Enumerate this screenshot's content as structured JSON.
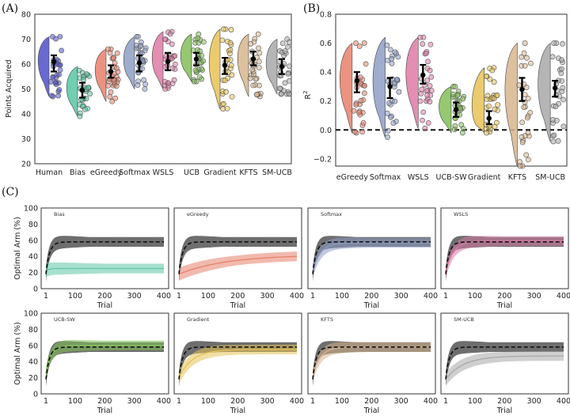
{
  "panel_labels": {
    "A": "(A)",
    "B": "(B)",
    "C": "(C)"
  },
  "chart_data": [
    {
      "type": "violin",
      "panel": "(A)",
      "xlabel": "",
      "ylabel": "Points Acquired",
      "ylim": [
        20,
        80
      ],
      "yticks": [
        20,
        30,
        40,
        50,
        60,
        70,
        80
      ],
      "grid": false,
      "categories": [
        "Human",
        "Bias",
        "eGreedy",
        "Softmax",
        "WSLS",
        "UCB",
        "Gradient",
        "KFTS",
        "SM-UCB"
      ],
      "colors": [
        "#4f50c8",
        "#57c7a3",
        "#e8806a",
        "#8d9dc4",
        "#de7aa5",
        "#83be58",
        "#e6c255",
        "#d7b58d",
        "#a8a8a8"
      ],
      "mean": [
        61,
        49.5,
        57,
        60.5,
        61,
        62,
        59.5,
        62,
        59
      ],
      "ci": [
        [
          57,
          63.5
        ],
        [
          46.5,
          52.5
        ],
        [
          54.5,
          59.5
        ],
        [
          57,
          63.5
        ],
        [
          57.5,
          64.5
        ],
        [
          59.5,
          64.5
        ],
        [
          56,
          62.5
        ],
        [
          59.5,
          65
        ],
        [
          56,
          62
        ]
      ],
      "min": [
        47,
        39,
        45,
        50,
        50,
        53,
        42,
        47,
        48
      ],
      "max": [
        71,
        59,
        66,
        71,
        73,
        72,
        74,
        72,
        70
      ]
    },
    {
      "type": "violin",
      "panel": "(B)",
      "xlabel": "",
      "ylabel": "R",
      "ylabel_sup": "2",
      "ylim": [
        -0.25,
        0.8
      ],
      "yticks": [
        -0.2,
        0.0,
        0.2,
        0.4,
        0.6,
        0.8
      ],
      "ytick_labels": [
        "−0.2",
        "0.0",
        "0.2",
        "0.4",
        "0.6",
        "0.8"
      ],
      "reference_line": 0.0,
      "grid": false,
      "categories": [
        "eGreedy",
        "Softmax",
        "WSLS",
        "UCB-SW",
        "Gradient",
        "KFTS",
        "SM-UCB"
      ],
      "colors": [
        "#e8806a",
        "#8d9dc4",
        "#de7aa5",
        "#83be58",
        "#e6c255",
        "#d7b58d",
        "#a8a8a8"
      ],
      "mean": [
        0.34,
        0.3,
        0.38,
        0.14,
        0.08,
        0.28,
        0.29
      ],
      "ci": [
        [
          0.26,
          0.4
        ],
        [
          0.22,
          0.36
        ],
        [
          0.32,
          0.45
        ],
        [
          0.09,
          0.19
        ],
        [
          0.04,
          0.13
        ],
        [
          0.2,
          0.36
        ],
        [
          0.23,
          0.34
        ]
      ],
      "min": [
        -0.02,
        -0.05,
        0.01,
        -0.02,
        -0.02,
        -0.25,
        -0.08
      ],
      "max": [
        0.6,
        0.64,
        0.64,
        0.3,
        0.43,
        0.6,
        0.6
      ]
    },
    {
      "type": "line",
      "panel": "(C)",
      "xlabel": "Trial",
      "ylabel": "Optimal Arm (%)",
      "xlim": [
        1,
        400
      ],
      "ylim": [
        0,
        100
      ],
      "xticks": [
        1,
        100,
        200,
        300,
        400
      ],
      "yticks": [
        0,
        20,
        40,
        60,
        80,
        100
      ],
      "human_series": {
        "color": "#555555",
        "dashed_mean": true,
        "start": 18,
        "plateau": 58
      },
      "subplots": [
        {
          "title": "Bias",
          "color": "#5fc7a6",
          "start": 22,
          "plateau": 25,
          "rise": 10
        },
        {
          "title": "eGreedy",
          "color": "#e8806a",
          "start": 18,
          "plateau": 42,
          "rise": 160
        },
        {
          "title": "Softmax",
          "color": "#8d9dc4",
          "start": 20,
          "plateau": 57,
          "rise": 25
        },
        {
          "title": "WSLS",
          "color": "#d97aa6",
          "start": 20,
          "plateau": 59,
          "rise": 25
        },
        {
          "title": "UCB-SW",
          "color": "#83c35a",
          "start": 25,
          "plateau": 60,
          "rise": 18
        },
        {
          "title": "Gradient",
          "color": "#e6c255",
          "start": 20,
          "plateau": 55,
          "rise": 45
        },
        {
          "title": "KFTS",
          "color": "#d7b58d",
          "start": 22,
          "plateau": 58,
          "rise": 25
        },
        {
          "title": "SM-UCB",
          "color": "#a8a8a8",
          "start": 18,
          "plateau": 47,
          "rise": 60
        }
      ]
    }
  ]
}
